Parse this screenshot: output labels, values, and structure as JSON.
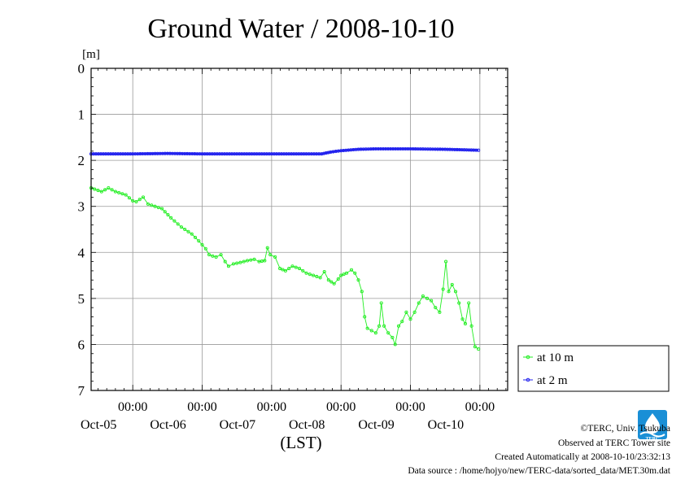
{
  "colors": {
    "series_10m": "#22ee22",
    "series_2m": "#2222ee",
    "grid": "#999999",
    "logo": "#1a8fd6"
  },
  "chart_data": {
    "type": "line",
    "title": "Ground Water / 2008-10-10",
    "ylabel": "[m]",
    "xlabel": "(LST)",
    "ylim": [
      0,
      7
    ],
    "y_inverted": true,
    "y_ticks": [
      "0",
      "1",
      "2",
      "3",
      "4",
      "5",
      "6",
      "7"
    ],
    "x_unit": "days from Oct-04 00:00",
    "xlim": [
      0.4,
      6.4
    ],
    "x_tick_labels": [
      {
        "x": 1,
        "time": "00:00",
        "date": "Oct-05"
      },
      {
        "x": 2,
        "time": "00:00",
        "date": "Oct-06"
      },
      {
        "x": 3,
        "time": "00:00",
        "date": "Oct-07"
      },
      {
        "x": 4,
        "time": "00:00",
        "date": "Oct-08"
      },
      {
        "x": 5,
        "time": "00:00",
        "date": "Oct-09"
      },
      {
        "x": 6,
        "time": "00:00",
        "date": "Oct-10"
      }
    ],
    "grid": true,
    "legend_position": "right",
    "series": [
      {
        "name": "at 10 m",
        "color": "#22ee22",
        "points": [
          [
            0.4,
            2.6
          ],
          [
            0.55,
            2.68
          ],
          [
            0.65,
            2.6
          ],
          [
            0.75,
            2.68
          ],
          [
            0.9,
            2.75
          ],
          [
            1.0,
            2.88
          ],
          [
            1.05,
            2.9
          ],
          [
            1.1,
            2.85
          ],
          [
            1.15,
            2.8
          ],
          [
            1.22,
            2.95
          ],
          [
            1.32,
            3.0
          ],
          [
            1.42,
            3.05
          ],
          [
            1.55,
            3.25
          ],
          [
            1.7,
            3.45
          ],
          [
            1.85,
            3.6
          ],
          [
            1.95,
            3.75
          ],
          [
            2.05,
            3.92
          ],
          [
            2.1,
            4.05
          ],
          [
            2.15,
            4.08
          ],
          [
            2.2,
            4.1
          ],
          [
            2.27,
            4.05
          ],
          [
            2.33,
            4.2
          ],
          [
            2.38,
            4.3
          ],
          [
            2.45,
            4.25
          ],
          [
            2.55,
            4.22
          ],
          [
            2.65,
            4.18
          ],
          [
            2.75,
            4.15
          ],
          [
            2.82,
            4.2
          ],
          [
            2.9,
            4.18
          ],
          [
            2.94,
            3.9
          ],
          [
            2.98,
            4.05
          ],
          [
            3.05,
            4.1
          ],
          [
            3.12,
            4.35
          ],
          [
            3.2,
            4.4
          ],
          [
            3.3,
            4.3
          ],
          [
            3.4,
            4.35
          ],
          [
            3.5,
            4.45
          ],
          [
            3.6,
            4.5
          ],
          [
            3.7,
            4.55
          ],
          [
            3.76,
            4.42
          ],
          [
            3.82,
            4.6
          ],
          [
            3.9,
            4.68
          ],
          [
            3.96,
            4.58
          ],
          [
            4.0,
            4.5
          ],
          [
            4.08,
            4.45
          ],
          [
            4.15,
            4.38
          ],
          [
            4.2,
            4.45
          ],
          [
            4.25,
            4.6
          ],
          [
            4.3,
            4.85
          ],
          [
            4.34,
            5.4
          ],
          [
            4.38,
            5.65
          ],
          [
            4.44,
            5.7
          ],
          [
            4.5,
            5.75
          ],
          [
            4.55,
            5.6
          ],
          [
            4.58,
            5.1
          ],
          [
            4.62,
            5.6
          ],
          [
            4.68,
            5.75
          ],
          [
            4.74,
            5.85
          ],
          [
            4.78,
            6.0
          ],
          [
            4.83,
            5.6
          ],
          [
            4.88,
            5.5
          ],
          [
            4.94,
            5.3
          ],
          [
            5.0,
            5.45
          ],
          [
            5.06,
            5.3
          ],
          [
            5.12,
            5.1
          ],
          [
            5.18,
            4.95
          ],
          [
            5.24,
            5.0
          ],
          [
            5.3,
            5.05
          ],
          [
            5.36,
            5.2
          ],
          [
            5.42,
            5.3
          ],
          [
            5.47,
            4.8
          ],
          [
            5.51,
            4.2
          ],
          [
            5.55,
            4.85
          ],
          [
            5.6,
            4.7
          ],
          [
            5.65,
            4.85
          ],
          [
            5.7,
            5.1
          ],
          [
            5.75,
            5.45
          ],
          [
            5.79,
            5.55
          ],
          [
            5.84,
            5.1
          ],
          [
            5.88,
            5.6
          ],
          [
            5.93,
            6.05
          ],
          [
            5.98,
            6.1
          ]
        ]
      },
      {
        "name": "at 2 m",
        "color": "#2222ee",
        "points": [
          [
            0.4,
            1.86
          ],
          [
            1.0,
            1.86
          ],
          [
            1.5,
            1.85
          ],
          [
            2.0,
            1.86
          ],
          [
            2.5,
            1.86
          ],
          [
            3.0,
            1.86
          ],
          [
            3.5,
            1.86
          ],
          [
            3.72,
            1.86
          ],
          [
            3.85,
            1.82
          ],
          [
            4.0,
            1.79
          ],
          [
            4.25,
            1.76
          ],
          [
            4.5,
            1.75
          ],
          [
            5.0,
            1.75
          ],
          [
            5.5,
            1.76
          ],
          [
            5.98,
            1.78
          ]
        ]
      }
    ]
  },
  "legend": {
    "items": [
      {
        "label": "at 10 m",
        "color": "#22ee22"
      },
      {
        "label": "at 2 m",
        "color": "#2222ee"
      }
    ]
  },
  "logo": {
    "text": "TERC",
    "icon": "terc-logo-icon"
  },
  "credits": {
    "copyright": "©TERC, Univ. Tsukuba",
    "observed": "Observed at TERC Tower site",
    "created": "Created Automatically at 2008-10-10/23:32:13",
    "source": "Data source : /home/hojyo/new/TERC-data/sorted_data/MET.30m.dat"
  }
}
